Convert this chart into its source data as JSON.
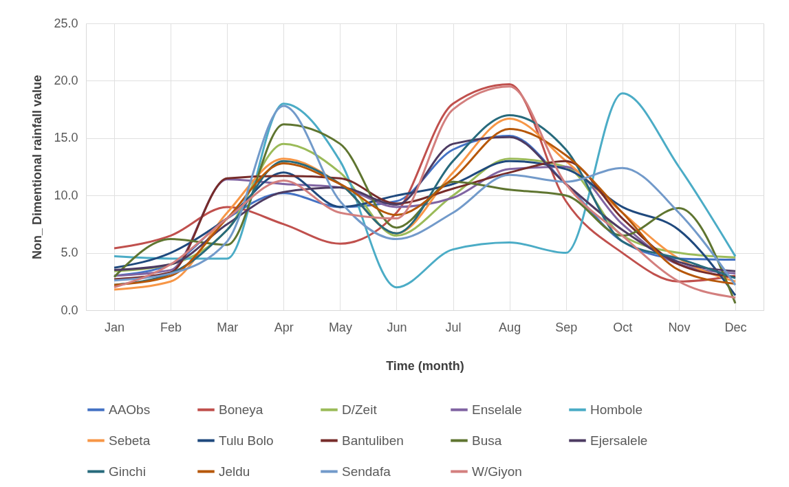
{
  "chart_data": {
    "type": "line",
    "xlabel": "Time (month)",
    "ylabel": "Non_ Dimentional rainfall value",
    "categories": [
      "Jan",
      "Feb",
      "Mar",
      "Apr",
      "May",
      "Jun",
      "Jul",
      "Aug",
      "Sep",
      "Oct",
      "Nov",
      "Dec"
    ],
    "ylim": [
      0,
      25
    ],
    "yticks": [
      {
        "value": 0,
        "label": "0.0"
      },
      {
        "value": 5,
        "label": "5.0"
      },
      {
        "value": 10,
        "label": "10.0"
      },
      {
        "value": 15,
        "label": "15.0"
      },
      {
        "value": 20,
        "label": "20.0"
      },
      {
        "value": 25,
        "label": "25.0"
      }
    ],
    "grid": true,
    "legend": "bottom",
    "marker": "none",
    "line_style": "solid",
    "series": [
      {
        "name": "AAObs",
        "color": "#4472c4",
        "values": [
          3.0,
          4.0,
          8.0,
          10.2,
          9.0,
          9.5,
          14.0,
          15.2,
          11.0,
          6.0,
          4.5,
          4.4
        ]
      },
      {
        "name": "Boneya",
        "color": "#c0504d",
        "values": [
          5.4,
          6.5,
          9.0,
          7.5,
          5.8,
          8.5,
          18.0,
          19.7,
          9.5,
          5.0,
          2.5,
          3.0
        ]
      },
      {
        "name": "D/Zeit",
        "color": "#9bbb59",
        "values": [
          3.4,
          4.0,
          7.0,
          14.5,
          12.0,
          6.5,
          10.0,
          13.2,
          12.5,
          6.5,
          5.0,
          4.6
        ]
      },
      {
        "name": "Enselale",
        "color": "#8064a2",
        "values": [
          3.0,
          3.5,
          11.4,
          11.0,
          10.7,
          9.0,
          9.8,
          12.3,
          12.5,
          7.5,
          4.0,
          3.2
        ]
      },
      {
        "name": "Hombole",
        "color": "#4bacc6",
        "values": [
          4.7,
          4.5,
          4.5,
          18.0,
          13.0,
          2.0,
          5.3,
          5.9,
          5.0,
          18.9,
          12.5,
          4.7
        ]
      },
      {
        "name": "Sebeta",
        "color": "#f79646",
        "values": [
          1.8,
          2.5,
          8.5,
          13.2,
          11.0,
          6.7,
          12.0,
          16.7,
          13.0,
          8.5,
          4.5,
          2.5
        ]
      },
      {
        "name": "Tulu Bolo",
        "color": "#1f497d",
        "values": [
          3.7,
          5.0,
          8.0,
          12.0,
          9.0,
          10.0,
          11.0,
          13.0,
          12.3,
          9.0,
          7.0,
          1.3
        ]
      },
      {
        "name": "Bantuliben",
        "color": "#772c2a",
        "values": [
          2.7,
          3.3,
          11.5,
          11.7,
          11.5,
          9.3,
          10.6,
          12.0,
          13.0,
          8.0,
          4.0,
          2.9
        ]
      },
      {
        "name": "Busa",
        "color": "#5f7530",
        "values": [
          2.9,
          6.2,
          5.7,
          16.2,
          14.5,
          7.2,
          11.2,
          10.5,
          10.0,
          6.5,
          8.9,
          0.6
        ]
      },
      {
        "name": "Ejersalele",
        "color": "#4d3b62",
        "values": [
          3.5,
          4.0,
          7.5,
          10.3,
          10.7,
          9.2,
          14.5,
          15.1,
          11.0,
          7.0,
          4.2,
          3.4
        ]
      },
      {
        "name": "Ginchi",
        "color": "#276a7c",
        "values": [
          2.2,
          3.2,
          7.0,
          13.0,
          11.0,
          6.7,
          13.0,
          17.0,
          14.0,
          6.0,
          4.5,
          2.8
        ]
      },
      {
        "name": "Jeldu",
        "color": "#b65708",
        "values": [
          2.2,
          3.0,
          8.0,
          12.8,
          11.0,
          8.3,
          11.5,
          15.8,
          13.5,
          8.5,
          3.5,
          2.3
        ]
      },
      {
        "name": "Sendafa",
        "color": "#729aca",
        "values": [
          2.6,
          3.2,
          6.0,
          17.8,
          9.5,
          6.2,
          8.5,
          11.8,
          11.2,
          12.4,
          8.5,
          2.2
        ]
      },
      {
        "name": "W/Giyon",
        "color": "#d37f7e",
        "values": [
          2.0,
          4.0,
          8.0,
          11.3,
          8.5,
          8.0,
          17.5,
          19.5,
          11.0,
          6.5,
          2.5,
          1.1
        ]
      }
    ]
  }
}
